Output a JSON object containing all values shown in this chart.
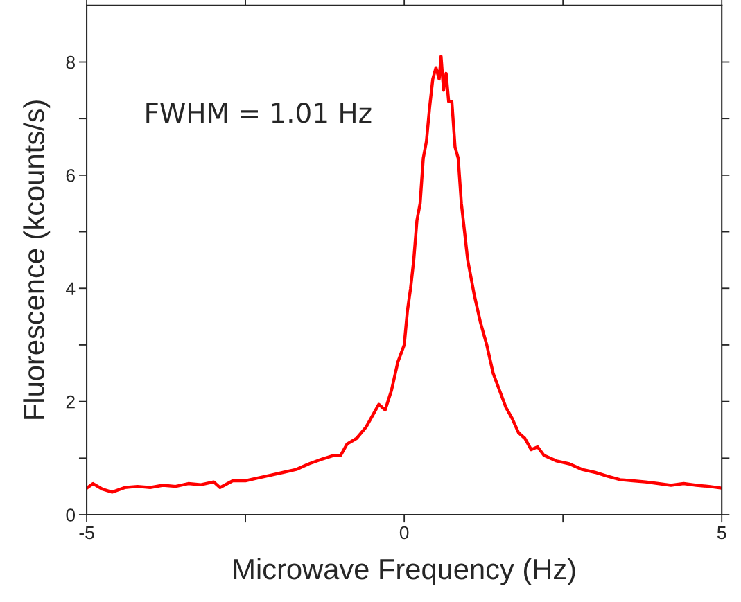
{
  "chart_data": {
    "type": "line",
    "xlabel": "Microwave Frequency (Hz)",
    "ylabel": "Fluorescence (kcounts/s)",
    "annotations": [
      "FWHM = 1.01 Hz"
    ],
    "x": [
      -5.0,
      -4.9,
      -4.75,
      -4.6,
      -4.4,
      -4.2,
      -4.0,
      -3.8,
      -3.6,
      -3.4,
      -3.2,
      -3.0,
      -2.9,
      -2.7,
      -2.5,
      -2.3,
      -2.1,
      -1.9,
      -1.7,
      -1.5,
      -1.3,
      -1.1,
      -1.0,
      -0.9,
      -0.75,
      -0.6,
      -0.5,
      -0.4,
      -0.3,
      -0.2,
      -0.1,
      0.0,
      0.05,
      0.1,
      0.15,
      0.2,
      0.25,
      0.3,
      0.35,
      0.4,
      0.45,
      0.5,
      0.55,
      0.58,
      0.62,
      0.66,
      0.7,
      0.75,
      0.8,
      0.85,
      0.9,
      0.95,
      1.0,
      1.1,
      1.2,
      1.3,
      1.4,
      1.5,
      1.6,
      1.7,
      1.8,
      1.9,
      2.0,
      2.1,
      2.2,
      2.4,
      2.6,
      2.8,
      3.0,
      3.2,
      3.4,
      3.6,
      3.8,
      4.0,
      4.2,
      4.4,
      4.6,
      4.8,
      5.0
    ],
    "series": [
      {
        "color": "#ff0000",
        "values": [
          0.47,
          0.55,
          0.45,
          0.4,
          0.48,
          0.5,
          0.48,
          0.52,
          0.5,
          0.55,
          0.53,
          0.58,
          0.48,
          0.6,
          0.6,
          0.65,
          0.7,
          0.75,
          0.8,
          0.9,
          0.98,
          1.05,
          1.05,
          1.25,
          1.35,
          1.55,
          1.75,
          1.95,
          1.85,
          2.2,
          2.7,
          3.0,
          3.6,
          4.0,
          4.5,
          5.2,
          5.5,
          6.3,
          6.6,
          7.2,
          7.7,
          7.9,
          7.7,
          8.1,
          7.5,
          7.8,
          7.3,
          7.3,
          6.5,
          6.3,
          5.5,
          5.0,
          4.5,
          3.9,
          3.4,
          3.0,
          2.5,
          2.2,
          1.9,
          1.7,
          1.45,
          1.35,
          1.15,
          1.2,
          1.05,
          0.95,
          0.9,
          0.8,
          0.75,
          0.68,
          0.62,
          0.6,
          0.58,
          0.55,
          0.52,
          0.55,
          0.52,
          0.5,
          0.47
        ]
      }
    ],
    "xlim": [
      -5,
      5
    ],
    "ylim": [
      0,
      9
    ],
    "xticks": [
      -5,
      {
        "value": -2.5,
        "label": null
      },
      0,
      {
        "value": 2.5,
        "label": null
      },
      5
    ],
    "yticks": [
      0,
      {
        "value": 1,
        "label": null
      },
      2,
      {
        "value": 3,
        "label": null
      },
      4,
      {
        "value": 5,
        "label": null
      },
      6,
      {
        "value": 7,
        "label": null
      },
      8
    ],
    "grid": false,
    "line_style": "solid"
  }
}
